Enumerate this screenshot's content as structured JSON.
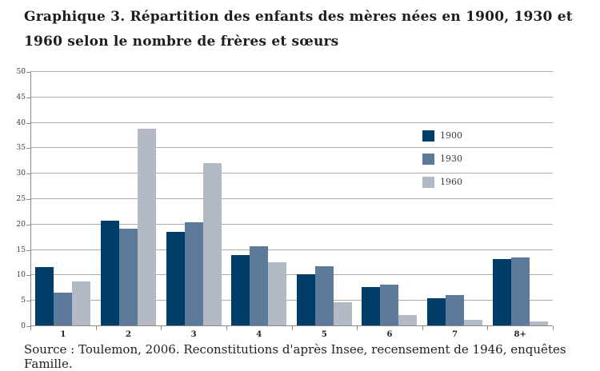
{
  "page": {
    "title_line1": "Graphique 3. Répartition des enfants des mères nées en 1900, 1930 et",
    "title_line2": "1960 selon le nombre de frères et sœurs",
    "source": "Source : Toulemon, 2006. Reconstitutions d'après Insee, recensement de 1946, enquêtes Famille."
  },
  "colors": {
    "ink": "#1e1e1e",
    "gridline": "#aeaea5",
    "axis": "#8c8c84",
    "tick_text": "#3d3d3d",
    "series_1900": "#003e6a",
    "series_1930": "#5d7a9b",
    "series_1960": "#b3bac5"
  },
  "chart_data": {
    "type": "bar",
    "title": "Graphique 3. Répartition des enfants des mères nées en 1900, 1930 et 1960 selon le nombre de frères et sœurs",
    "xlabel": "",
    "ylabel": "",
    "ylim": [
      0,
      50
    ],
    "ytick_step": 5,
    "grid": true,
    "legend_position": "inside-right",
    "categories": [
      "1",
      "2",
      "3",
      "4",
      "5",
      "6",
      "7",
      "8+"
    ],
    "series": [
      {
        "name": "1900",
        "color": "#003e6a",
        "values": [
          11.5,
          20.6,
          18.4,
          13.9,
          10.0,
          7.6,
          5.3,
          13.1
        ]
      },
      {
        "name": "1930",
        "color": "#5d7a9b",
        "values": [
          6.4,
          19.0,
          20.3,
          15.6,
          11.6,
          8.0,
          6.0,
          13.4
        ]
      },
      {
        "name": "1960",
        "color": "#b3bac5",
        "values": [
          8.6,
          38.7,
          31.9,
          12.4,
          4.6,
          2.1,
          1.1,
          0.8
        ]
      }
    ]
  }
}
